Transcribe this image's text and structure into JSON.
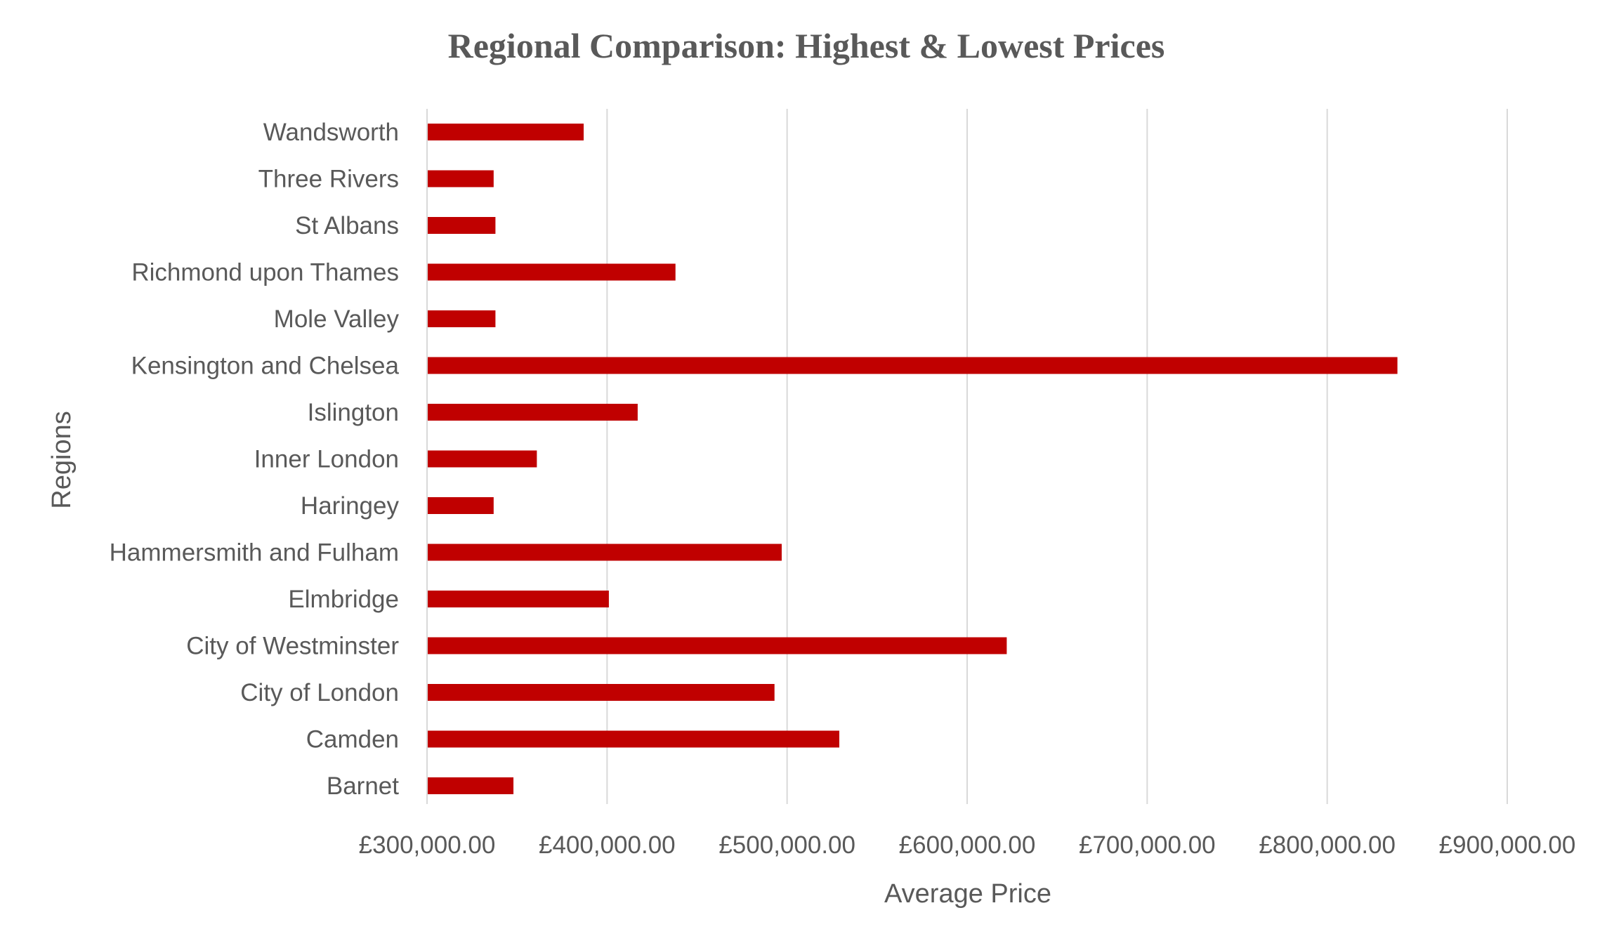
{
  "chart_data": {
    "type": "bar",
    "orientation": "horizontal",
    "title": "Regional Comparison: Highest & Lowest Prices",
    "xlabel": "Average Price",
    "ylabel": "Regions",
    "xlim": [
      300000,
      900000
    ],
    "x_ticks": [
      300000,
      400000,
      500000,
      600000,
      700000,
      800000,
      900000
    ],
    "x_tick_labels": [
      "£300,000.00",
      "£400,000.00",
      "£500,000.00",
      "£600,000.00",
      "£700,000.00",
      "£800,000.00",
      "£900,000.00"
    ],
    "categories": [
      "Barnet",
      "Camden",
      "City of London",
      "City of Westminster",
      "Elmbridge",
      "Hammersmith and Fulham",
      "Haringey",
      "Inner London",
      "Islington",
      "Kensington and Chelsea",
      "Mole Valley",
      "Richmond upon Thames",
      "St Albans",
      "Three Rivers",
      "Wandsworth"
    ],
    "values": [
      348000,
      529000,
      493000,
      622000,
      401000,
      497000,
      337000,
      361000,
      417000,
      839000,
      338000,
      438000,
      338000,
      337000,
      387000
    ],
    "bar_color": "#C00000",
    "grid": true,
    "legend": false
  }
}
